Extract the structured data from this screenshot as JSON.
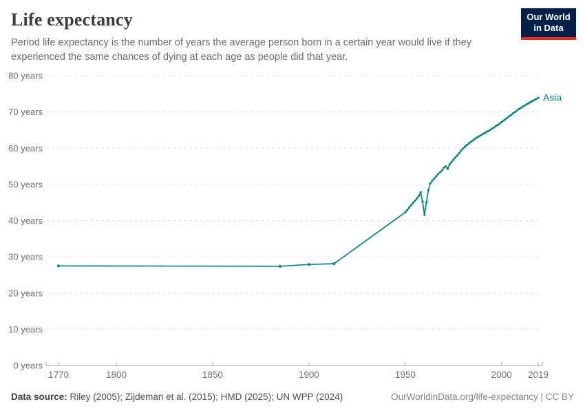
{
  "header": {
    "title": "Life expectancy",
    "subtitle": "Period life expectancy is the number of years the average person born in a certain year would live if they experienced the same chances of dying at each age as people did that year."
  },
  "logo": {
    "line1": "Our World",
    "line2": "in Data",
    "bg_color": "#002147",
    "accent_color": "#e0301f"
  },
  "footer": {
    "datasource_label": "Data source:",
    "datasource_text": "Riley (2005); Zijdeman et al. (2015); HMD (2025); UN WPP (2024)",
    "rights": "OurWorldinData.org/life-expectancy | CC BY"
  },
  "chart_data": {
    "type": "line",
    "title": "Life expectancy",
    "xlabel": "",
    "ylabel": "",
    "y_tick_suffix": " years",
    "xlim": [
      1770,
      2019
    ],
    "ylim": [
      0,
      80
    ],
    "grid": true,
    "legend_position": "end-of-line",
    "x_ticks": [
      1770,
      1800,
      1850,
      1900,
      1950,
      2000,
      2019
    ],
    "y_ticks": [
      0,
      10,
      20,
      30,
      40,
      50,
      60,
      70,
      80
    ],
    "colors": {
      "line": "#00847e",
      "grid": "#dcdcdc",
      "axis": "#a5a5a5",
      "tick_text": "#6e6e6e"
    },
    "series": [
      {
        "name": "Asia",
        "color": "#00847e",
        "points": [
          [
            1770,
            27.5
          ],
          [
            1885,
            27.4
          ],
          [
            1900,
            27.9
          ],
          [
            1913,
            28.1
          ],
          [
            1950,
            42.3
          ],
          [
            1951,
            42.9
          ],
          [
            1952,
            43.6
          ],
          [
            1953,
            44.2
          ],
          [
            1954,
            44.9
          ],
          [
            1955,
            45.5
          ],
          [
            1956,
            46.1
          ],
          [
            1957,
            46.8
          ],
          [
            1958,
            47.8
          ],
          [
            1959,
            45.2
          ],
          [
            1960,
            41.6
          ],
          [
            1961,
            45.0
          ],
          [
            1962,
            48.4
          ],
          [
            1963,
            50.3
          ],
          [
            1964,
            51.0
          ],
          [
            1965,
            51.6
          ],
          [
            1966,
            52.2
          ],
          [
            1967,
            52.8
          ],
          [
            1968,
            53.3
          ],
          [
            1969,
            53.8
          ],
          [
            1970,
            54.6
          ],
          [
            1971,
            55.0
          ],
          [
            1972,
            54.3
          ],
          [
            1973,
            55.5
          ],
          [
            1974,
            56.2
          ],
          [
            1975,
            56.8
          ],
          [
            1976,
            57.4
          ],
          [
            1977,
            58.0
          ],
          [
            1978,
            58.6
          ],
          [
            1979,
            59.3
          ],
          [
            1980,
            59.9
          ],
          [
            1981,
            60.4
          ],
          [
            1982,
            60.9
          ],
          [
            1983,
            61.3
          ],
          [
            1984,
            61.7
          ],
          [
            1985,
            62.1
          ],
          [
            1986,
            62.5
          ],
          [
            1987,
            62.9
          ],
          [
            1988,
            63.2
          ],
          [
            1989,
            63.5
          ],
          [
            1990,
            63.8
          ],
          [
            1991,
            64.1
          ],
          [
            1992,
            64.4
          ],
          [
            1993,
            64.7
          ],
          [
            1994,
            65.0
          ],
          [
            1995,
            65.4
          ],
          [
            1996,
            65.7
          ],
          [
            1997,
            66.1
          ],
          [
            1998,
            66.4
          ],
          [
            1999,
            66.8
          ],
          [
            2000,
            67.2
          ],
          [
            2001,
            67.6
          ],
          [
            2002,
            68.0
          ],
          [
            2003,
            68.4
          ],
          [
            2004,
            68.8
          ],
          [
            2005,
            69.2
          ],
          [
            2006,
            69.6
          ],
          [
            2007,
            70.0
          ],
          [
            2008,
            70.4
          ],
          [
            2009,
            70.8
          ],
          [
            2010,
            71.1
          ],
          [
            2011,
            71.5
          ],
          [
            2012,
            71.8
          ],
          [
            2013,
            72.1
          ],
          [
            2014,
            72.4
          ],
          [
            2015,
            72.7
          ],
          [
            2016,
            73.0
          ],
          [
            2017,
            73.3
          ],
          [
            2018,
            73.6
          ],
          [
            2019,
            73.9
          ]
        ]
      }
    ]
  }
}
